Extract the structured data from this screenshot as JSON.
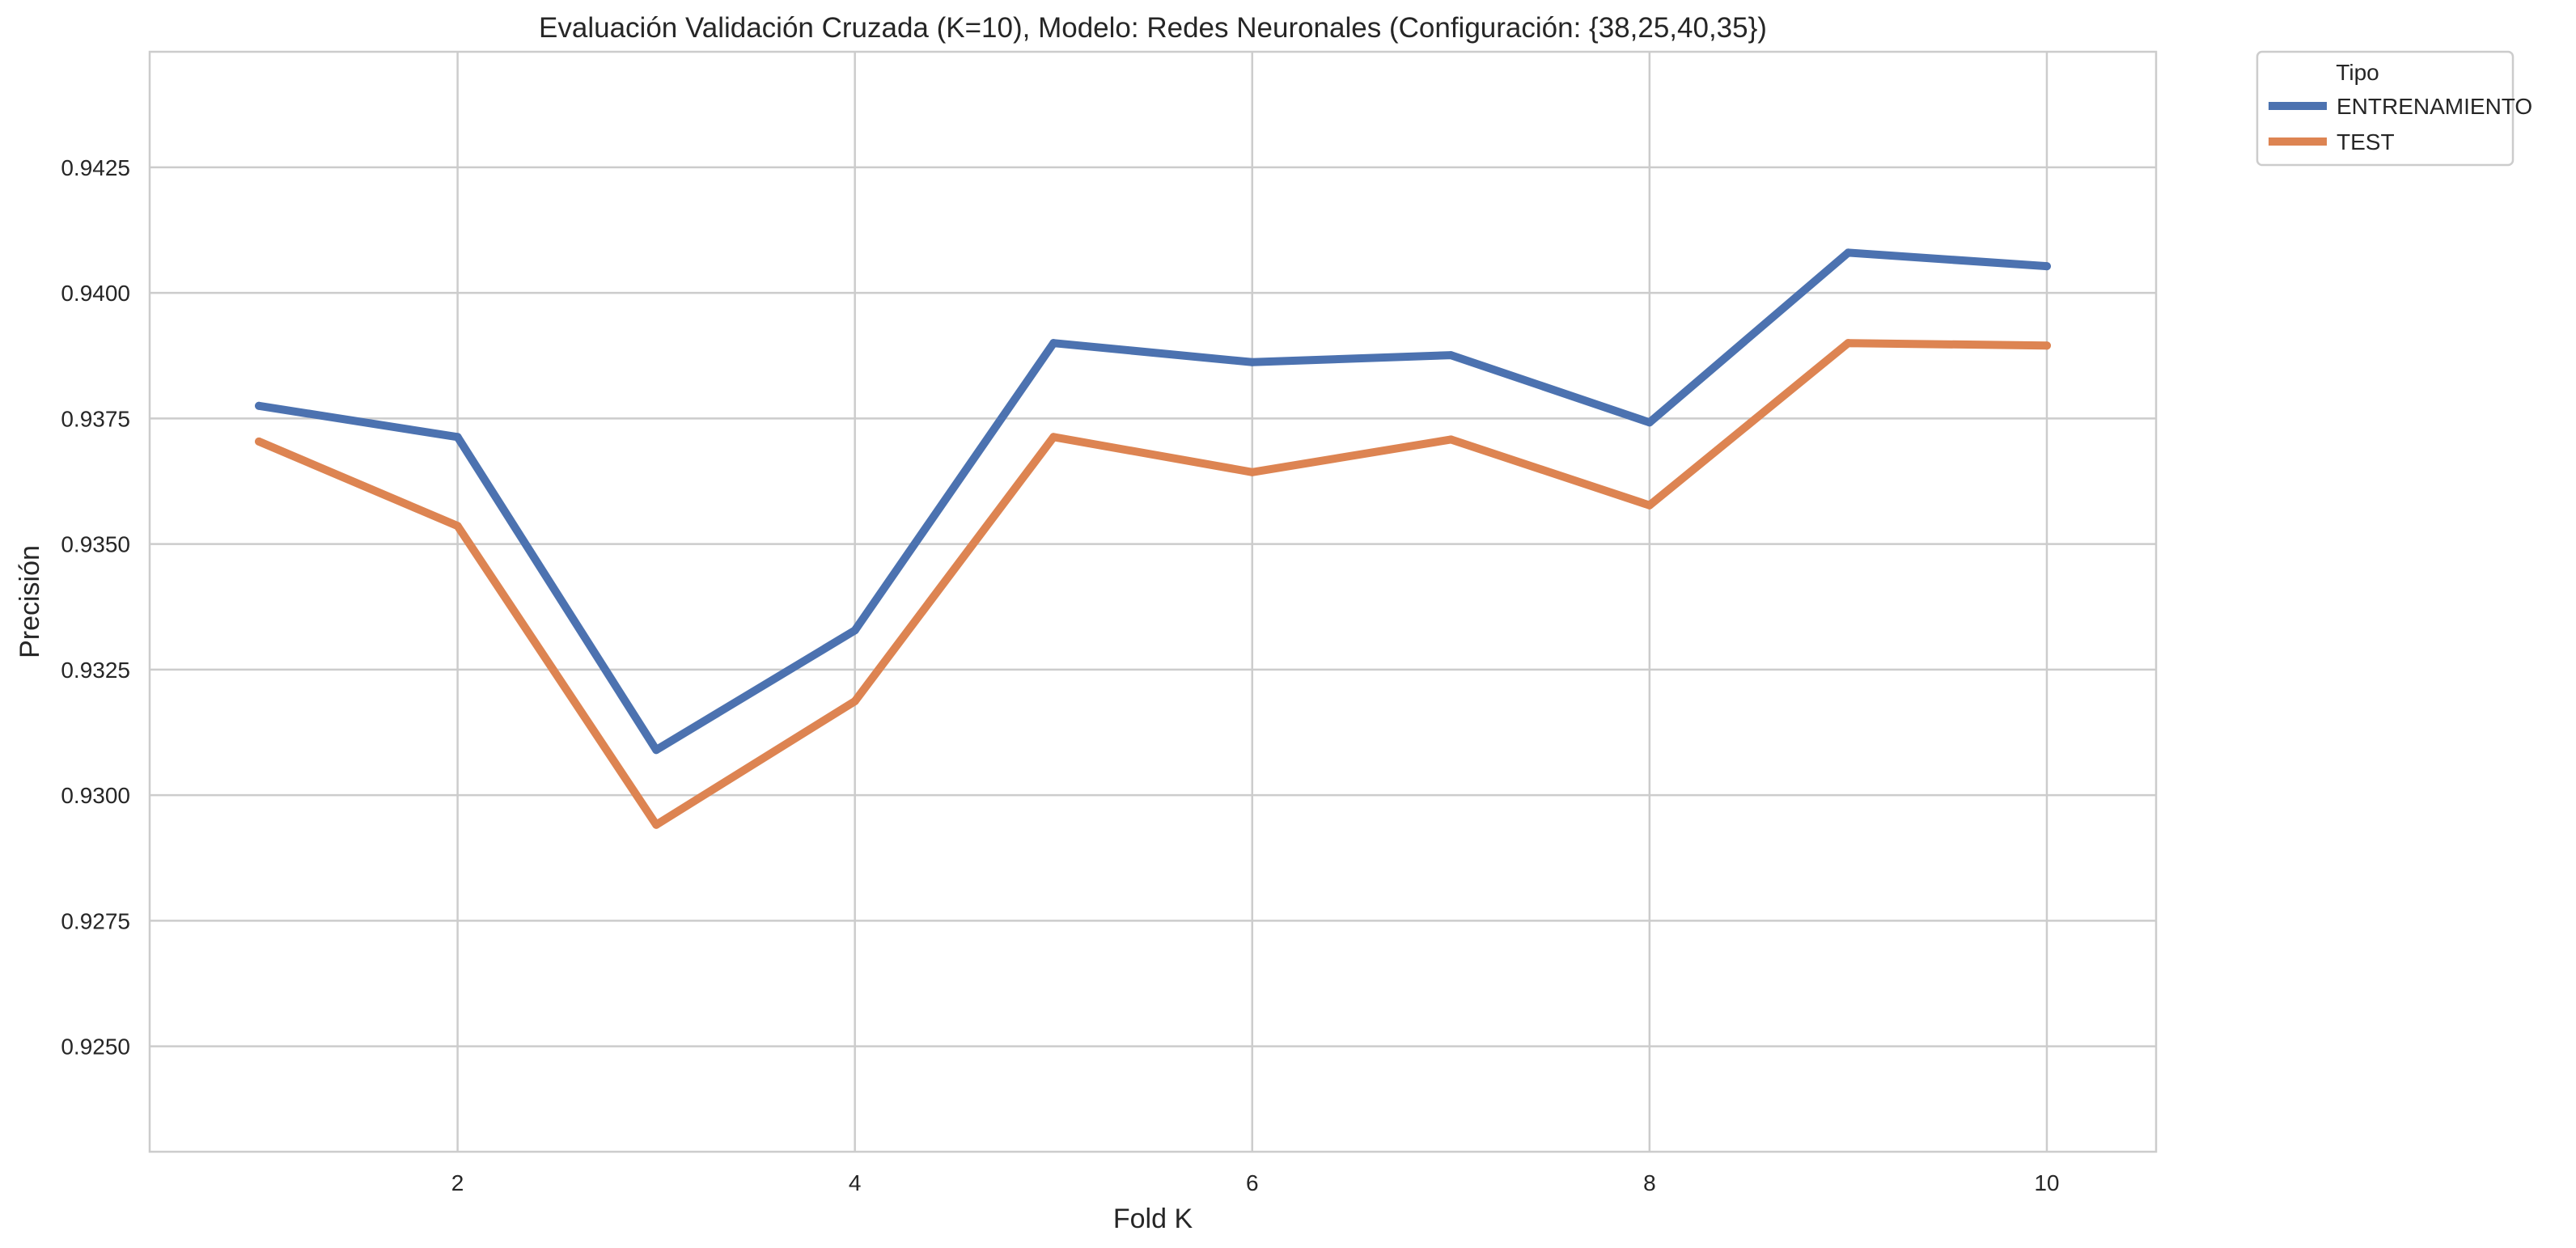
{
  "chart_data": {
    "type": "line",
    "title": "Evaluación Validación Cruzada (K=10), Modelo: Redes Neuronales (Configuración: {38,25,40,35})",
    "xlabel": "Fold K",
    "ylabel": "Precisión",
    "x": [
      1,
      2,
      3,
      4,
      5,
      6,
      7,
      8,
      9,
      10
    ],
    "xlim": [
      0.45,
      10.55
    ],
    "ylim": [
      0.9229,
      0.9448
    ],
    "xticks": [
      2,
      4,
      6,
      8,
      10
    ],
    "xtick_labels": [
      "2",
      "4",
      "6",
      "8",
      "10"
    ],
    "yticks": [
      0.925,
      0.9275,
      0.93,
      0.9325,
      0.935,
      0.9375,
      0.94,
      0.9425
    ],
    "ytick_labels": [
      "0.9250",
      "0.9275",
      "0.9300",
      "0.9325",
      "0.9350",
      "0.9375",
      "0.9400",
      "0.9425"
    ],
    "grid": true,
    "legend": {
      "title": "Tipo",
      "placement": "outside-top-right"
    },
    "series": [
      {
        "name": "ENTRENAMIENTO",
        "color": "#4c72b0",
        "values": [
          0.93775,
          0.93713,
          0.9309,
          0.93328,
          0.939,
          0.93862,
          0.93876,
          0.93742,
          0.9408,
          0.94053
        ]
      },
      {
        "name": "TEST",
        "color": "#dd8452",
        "values": [
          0.93704,
          0.93536,
          0.92941,
          0.93187,
          0.93713,
          0.93643,
          0.93708,
          0.93577,
          0.939,
          0.93895
        ]
      }
    ]
  }
}
